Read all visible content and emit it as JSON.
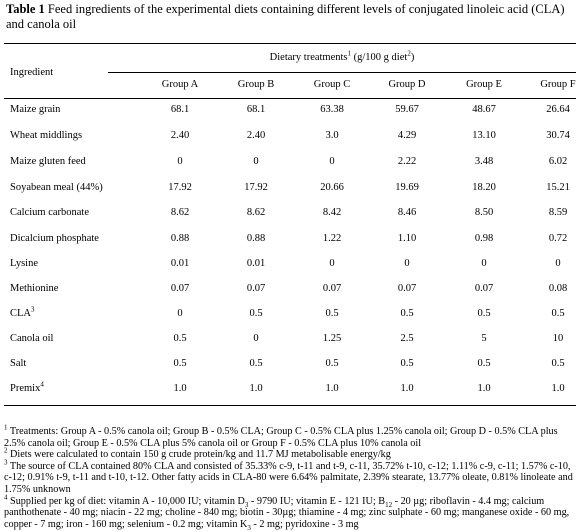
{
  "caption": {
    "label": "Table 1",
    "text": "Feed ingredients of the experimental diets containing different levels of conjugated linoleic acid (CLA) and canola oil"
  },
  "header": {
    "ingredient": "Ingredient",
    "dietary_treatments": "Dietary treatments",
    "dietary_sup": "1",
    "unit_pre": "(g/100 g diet",
    "unit_sup": "2",
    "unit_post": ")",
    "groups": [
      "Group A",
      "Group B",
      "Group C",
      "Group D",
      "Group E",
      "Group F"
    ]
  },
  "rows": [
    {
      "label": "Maize grain",
      "sup": "",
      "values": [
        "68.1",
        "68.1",
        "63.38",
        "59.67",
        "48.67",
        "26.64"
      ]
    },
    {
      "label": "Wheat middlings",
      "sup": "",
      "values": [
        "2.40",
        "2.40",
        "3.0",
        "4.29",
        "13.10",
        "30.74"
      ]
    },
    {
      "label": "Maize gluten feed",
      "sup": "",
      "values": [
        "0",
        "0",
        "0",
        "2.22",
        "3.48",
        "6.02"
      ]
    },
    {
      "label": "Soyabean meal (44%)",
      "sup": "",
      "values": [
        "17.92",
        "17.92",
        "20.66",
        "19.69",
        "18.20",
        "15.21"
      ]
    },
    {
      "label": "Calcium carbonate",
      "sup": "",
      "values": [
        "8.62",
        "8.62",
        "8.42",
        "8.46",
        "8.50",
        "8.59"
      ]
    },
    {
      "label": "Dicalcium phosphate",
      "sup": "",
      "values": [
        "0.88",
        "0.88",
        "1.22",
        "1.10",
        "0.98",
        "0.72"
      ]
    },
    {
      "label": "Lysine",
      "sup": "",
      "values": [
        "0.01",
        "0.01",
        "0",
        "0",
        "0",
        "0"
      ]
    },
    {
      "label": "Methionine",
      "sup": "",
      "values": [
        "0.07",
        "0.07",
        "0.07",
        "0.07",
        "0.07",
        "0.08"
      ]
    },
    {
      "label": "CLA",
      "sup": "3",
      "values": [
        "0",
        "0.5",
        "0.5",
        "0.5",
        "0.5",
        "0.5"
      ]
    },
    {
      "label": "Canola oil",
      "sup": "",
      "values": [
        "0.5",
        "0",
        "1.25",
        "2.5",
        "5",
        "10"
      ]
    },
    {
      "label": "Salt",
      "sup": "",
      "values": [
        "0.5",
        "0.5",
        "0.5",
        "0.5",
        "0.5",
        "0.5"
      ]
    },
    {
      "label": "Premix",
      "sup": "4",
      "values": [
        "1.0",
        "1.0",
        "1.0",
        "1.0",
        "1.0",
        "1.0"
      ]
    }
  ],
  "footnotes": {
    "n1": {
      "mark": "1",
      "text": "Treatments: Group A - 0.5% canola oil; Group B - 0.5% CLA; Group C - 0.5% CLA plus 1.25% canola oil; Group D - 0.5% CLA plus 2.5% canola oil; Group E - 0.5% CLA plus 5% canola oil or Group F - 0.5% CLA plus 10% canola oil"
    },
    "n2": {
      "mark": "2",
      "text": "Diets were calculated to contain 150 g crude protein/kg and 11.7 MJ metabolisable energy/kg"
    },
    "n3": {
      "mark": "3",
      "text": "The source of CLA contained 80% CLA and consisted of 35.33% c-9, t-11 and t-9, c-11, 35.72% t-10, c-12; 1.11% c-9, c-11; 1.57% c-10, c-12; 0.91% t-9, t-11 and t-10, t-12.  Other fatty acids in CLA-80 were 6.64% palmitate, 2.39% stearate, 13.77% oleate, 0.81% linoleate and 1.75% unknown"
    },
    "n4": {
      "mark": "4",
      "part1": "Supplied per kg of diet: vitamin A - 10,000 IU; vitamin D",
      "sub1": "3",
      "part2": " - 9790 IU; vitamin E - 121 IU; B",
      "sub2": "12",
      "part3": " - 20 µg; riboflavin - 4.4 mg; calcium panthothenate - 40 mg; niacin - 22 mg; choline - 840 mg; biotin - 30µg; thiamine - 4 mg; zinc sulphate - 60 mg; manganese oxide - 60 mg, copper - 7 mg; iron - 160 mg; selenium - 0.2 mg; vitamin K",
      "sub3": "3",
      "part4": " - 2 mg; pyridoxine - 3 mg"
    }
  }
}
